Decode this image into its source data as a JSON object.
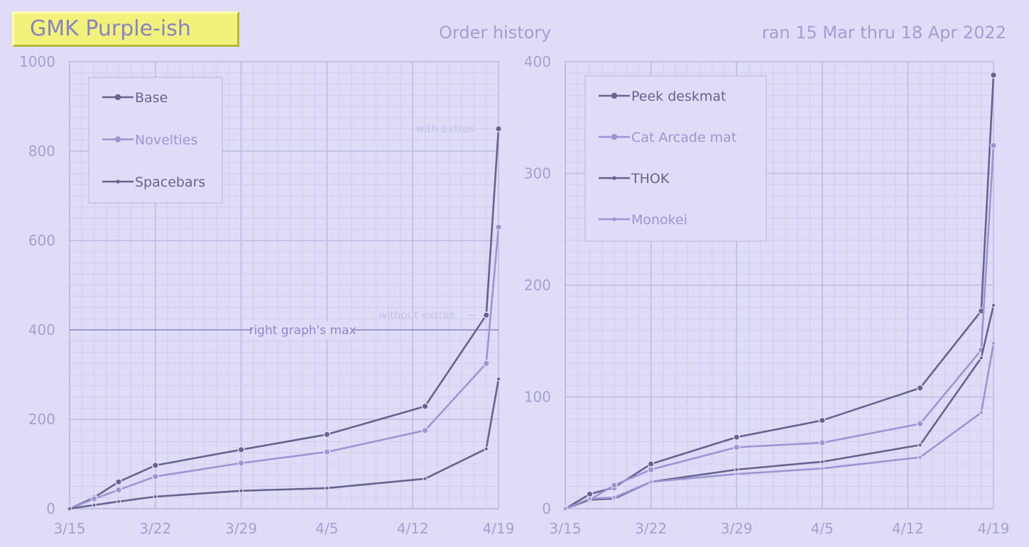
{
  "header": {
    "badge": "GMK Purple-ish",
    "subtitle": "Order history",
    "date_range": "ran 15 Mar thru 18 Apr 2022"
  },
  "colors": {
    "background": "#e0dcf7",
    "dark_series": "#67628f",
    "light_series": "#9a96d3",
    "grid_minor": "#cfcbec",
    "grid_major": "#bebade",
    "axis_text": "#a4a0d3"
  },
  "chart_data": [
    {
      "type": "line",
      "title": "",
      "x_ticks": [
        "3/15",
        "3/22",
        "3/29",
        "4/5",
        "4/12",
        "4/19"
      ],
      "xlim": [
        "3/15",
        "4/19"
      ],
      "ylim": [
        0,
        1000
      ],
      "y_ticks": [
        0,
        200,
        400,
        600,
        800,
        1000
      ],
      "grid": true,
      "legend_position": "top-left",
      "series": [
        {
          "name": "Base",
          "color": "#67628f",
          "dash": "solid",
          "points": [
            [
              "3/15",
              0
            ],
            [
              "3/17",
              25
            ],
            [
              "3/19",
              60
            ],
            [
              "3/22",
              97
            ],
            [
              "3/29",
              132
            ],
            [
              "4/5",
              166
            ],
            [
              "4/13",
              229
            ],
            [
              "4/18",
              433
            ],
            [
              "4/19",
              850
            ]
          ]
        },
        {
          "name": "Novelties",
          "color": "#9a96d3",
          "dash": "solid",
          "points": [
            [
              "3/15",
              0
            ],
            [
              "3/17",
              22
            ],
            [
              "3/19",
              42
            ],
            [
              "3/22",
              72
            ],
            [
              "3/29",
              102
            ],
            [
              "4/5",
              127
            ],
            [
              "4/13",
              175
            ],
            [
              "4/18",
              325
            ],
            [
              "4/19",
              630
            ]
          ]
        },
        {
          "name": "Spacebars",
          "color": "#67628f",
          "dash": "dashdot",
          "points": [
            [
              "3/15",
              0
            ],
            [
              "3/17",
              8
            ],
            [
              "3/19",
              16
            ],
            [
              "3/22",
              27
            ],
            [
              "3/29",
              40
            ],
            [
              "4/5",
              46
            ],
            [
              "4/13",
              67
            ],
            [
              "4/18",
              134
            ],
            [
              "4/19",
              290
            ]
          ]
        }
      ],
      "reference_line": {
        "value": 400,
        "label": "right graph's max"
      },
      "annotations": [
        {
          "text": "with extras",
          "x": "4/19",
          "y": 850
        },
        {
          "text": "without extras",
          "x": "4/18",
          "y": 433
        }
      ]
    },
    {
      "type": "line",
      "title": "",
      "x_ticks": [
        "3/15",
        "3/22",
        "3/29",
        "4/5",
        "4/12",
        "4/19"
      ],
      "xlim": [
        "3/15",
        "4/19"
      ],
      "ylim": [
        0,
        400
      ],
      "y_ticks": [
        0,
        100,
        200,
        300,
        400
      ],
      "grid": true,
      "legend_position": "top-left",
      "series": [
        {
          "name": "Peek deskmat",
          "color": "#67628f",
          "dash": "solid",
          "points": [
            [
              "3/15",
              0
            ],
            [
              "3/17",
              13
            ],
            [
              "3/19",
              19
            ],
            [
              "3/22",
              40
            ],
            [
              "3/29",
              64
            ],
            [
              "4/5",
              79
            ],
            [
              "4/13",
              108
            ],
            [
              "4/18",
              177
            ],
            [
              "4/19",
              388
            ]
          ]
        },
        {
          "name": "Cat Arcade mat",
          "color": "#9a96d3",
          "dash": "solid",
          "points": [
            [
              "3/15",
              0
            ],
            [
              "3/17",
              8
            ],
            [
              "3/19",
              21
            ],
            [
              "3/22",
              35
            ],
            [
              "3/29",
              55
            ],
            [
              "4/5",
              59
            ],
            [
              "4/13",
              76
            ],
            [
              "4/18",
              142
            ],
            [
              "4/19",
              325
            ]
          ]
        },
        {
          "name": "THOK",
          "color": "#67628f",
          "dash": "dashdot",
          "points": [
            [
              "3/15",
              0
            ],
            [
              "3/17",
              8
            ],
            [
              "3/19",
              9
            ],
            [
              "3/22",
              24
            ],
            [
              "3/29",
              35
            ],
            [
              "4/5",
              42
            ],
            [
              "4/13",
              57
            ],
            [
              "4/18",
              135
            ],
            [
              "4/19",
              182
            ]
          ]
        },
        {
          "name": "Monokei",
          "color": "#9a96d3",
          "dash": "dashdot",
          "points": [
            [
              "3/15",
              0
            ],
            [
              "3/17",
              9
            ],
            [
              "3/19",
              10
            ],
            [
              "3/22",
              24
            ],
            [
              "3/29",
              31
            ],
            [
              "4/5",
              36
            ],
            [
              "4/13",
              46
            ],
            [
              "4/18",
              86
            ],
            [
              "4/19",
              148
            ]
          ]
        }
      ]
    }
  ]
}
